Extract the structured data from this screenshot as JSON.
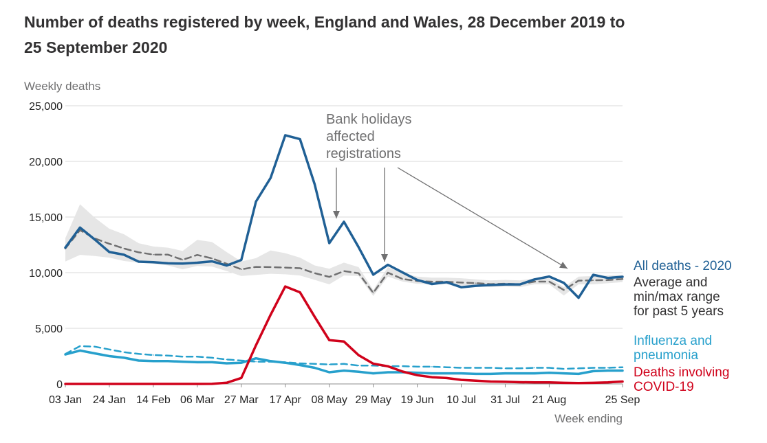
{
  "chart_data": {
    "type": "line",
    "title": "Number of deaths registered by week, England and Wales, 28 December 2019 to 25 September 2020",
    "ylabel": "Weekly deaths",
    "xlabel": "Week ending",
    "ylim": [
      0,
      25000
    ],
    "y_ticks": [
      "0",
      "5,000",
      "10,000",
      "15,000",
      "20,000",
      "25,000"
    ],
    "y_tick_values": [
      0,
      5000,
      10000,
      15000,
      20000,
      25000
    ],
    "x_tick_labels": [
      "03 Jan",
      "24 Jan",
      "14 Feb",
      "06 Mar",
      "27 Mar",
      "17 Apr",
      "08 May",
      "29 May",
      "19 Jun",
      "10 Jul",
      "31 Jul",
      "21 Aug",
      "25 Sep"
    ],
    "x_tick_weeks": [
      1,
      4,
      7,
      10,
      13,
      16,
      19,
      22,
      25,
      28,
      31,
      34,
      39
    ],
    "weeks": [
      1,
      2,
      3,
      4,
      5,
      6,
      7,
      8,
      9,
      10,
      11,
      12,
      13,
      14,
      15,
      16,
      17,
      18,
      19,
      20,
      21,
      22,
      23,
      24,
      25,
      26,
      27,
      28,
      29,
      30,
      31,
      32,
      33,
      34,
      35,
      36,
      37,
      38,
      39
    ],
    "series": [
      {
        "name": "All deaths - 2020",
        "color": "#206095",
        "style": "solid",
        "values": [
          12254,
          14058,
          12990,
          11856,
          11612,
          10986,
          10944,
          10841,
          10816,
          10895,
          11019,
          10645,
          11141,
          16387,
          18516,
          22351,
          21997,
          17953,
          12657,
          14573,
          12288,
          9824,
          10709,
          10017,
          9339,
          8979,
          9140,
          8690,
          8823,
          8891,
          8946,
          8945,
          9392,
          9655,
          9083,
          7739,
          9811,
          9523,
          9628
        ]
      },
      {
        "name": "Average and min/max range for past 5 years",
        "color": "#707071",
        "style": "dashed",
        "values": [
          12175,
          13822,
          13080,
          12599,
          12170,
          11829,
          11624,
          11619,
          11153,
          11590,
          11286,
          10804,
          10305,
          10520,
          10497,
          10458,
          10404,
          9955,
          9615,
          10144,
          9950,
          8189,
          9997,
          9432,
          9250,
          9191,
          9188,
          9111,
          9061,
          8969,
          9006,
          8956,
          9197,
          9198,
          8447,
          9285,
          9317,
          9335,
          9425
        ],
        "range_min": [
          11000,
          11600,
          11500,
          11350,
          11050,
          10900,
          10800,
          10650,
          10300,
          10600,
          10550,
          10150,
          9700,
          9800,
          9900,
          9850,
          9750,
          9350,
          8950,
          9750,
          9700,
          7900,
          9650,
          9200,
          9000,
          8950,
          8950,
          8850,
          8800,
          8700,
          8750,
          8700,
          8950,
          8950,
          7950,
          8950,
          8950,
          9050,
          9150
        ],
        "range_max": [
          13100,
          16150,
          14950,
          13950,
          13450,
          12650,
          12350,
          12250,
          11950,
          12950,
          12750,
          11850,
          11000,
          11300,
          12000,
          11750,
          11350,
          10650,
          10350,
          10900,
          10500,
          8450,
          10500,
          9950,
          9650,
          9550,
          9550,
          9500,
          9400,
          9300,
          9350,
          9300,
          9500,
          9500,
          8700,
          9650,
          9700,
          9750,
          9800
        ]
      },
      {
        "name": "Influenza and pneumonia",
        "color": "#27a0cc",
        "style": "solid",
        "values": [
          2650,
          3000,
          2750,
          2500,
          2350,
          2100,
          2050,
          2050,
          2000,
          1950,
          1950,
          1850,
          1900,
          2300,
          2050,
          1900,
          1700,
          1450,
          1050,
          1200,
          1100,
          950,
          1050,
          1050,
          1000,
          950,
          950,
          950,
          900,
          900,
          950,
          950,
          950,
          1000,
          950,
          900,
          1150,
          1200,
          1200
        ]
      },
      {
        "name": "Influenza and pneumonia (5-year average)",
        "color": "#27a0cc",
        "style": "dashed",
        "values": [
          2700,
          3400,
          3350,
          3100,
          2850,
          2700,
          2600,
          2550,
          2450,
          2450,
          2350,
          2200,
          2100,
          2000,
          2000,
          1950,
          1850,
          1800,
          1750,
          1800,
          1650,
          1650,
          1600,
          1600,
          1550,
          1550,
          1500,
          1450,
          1450,
          1450,
          1400,
          1400,
          1450,
          1450,
          1350,
          1400,
          1450,
          1450,
          1500
        ]
      },
      {
        "name": "Deaths involving COVID-19",
        "color": "#d0021b",
        "style": "solid",
        "values": [
          0,
          0,
          0,
          0,
          0,
          0,
          0,
          0,
          0,
          0,
          5,
          103,
          539,
          3475,
          6213,
          8758,
          8237,
          6035,
          3930,
          3810,
          2589,
          1822,
          1588,
          1114,
          783,
          606,
          532,
          366,
          295,
          217,
          193,
          152,
          139,
          138,
          101,
          78,
          99,
          139,
          215
        ]
      }
    ],
    "annotation": [
      "Bank holidays",
      "affected",
      "registrations"
    ],
    "legend_labels": {
      "all_deaths": "All deaths - 2020",
      "average": [
        "Average and",
        "min/max range",
        "for past 5 years"
      ],
      "influenza": [
        "Influenza and",
        "pneumonia"
      ],
      "covid": [
        "Deaths involving",
        "COVID-19"
      ]
    },
    "grid": true
  }
}
